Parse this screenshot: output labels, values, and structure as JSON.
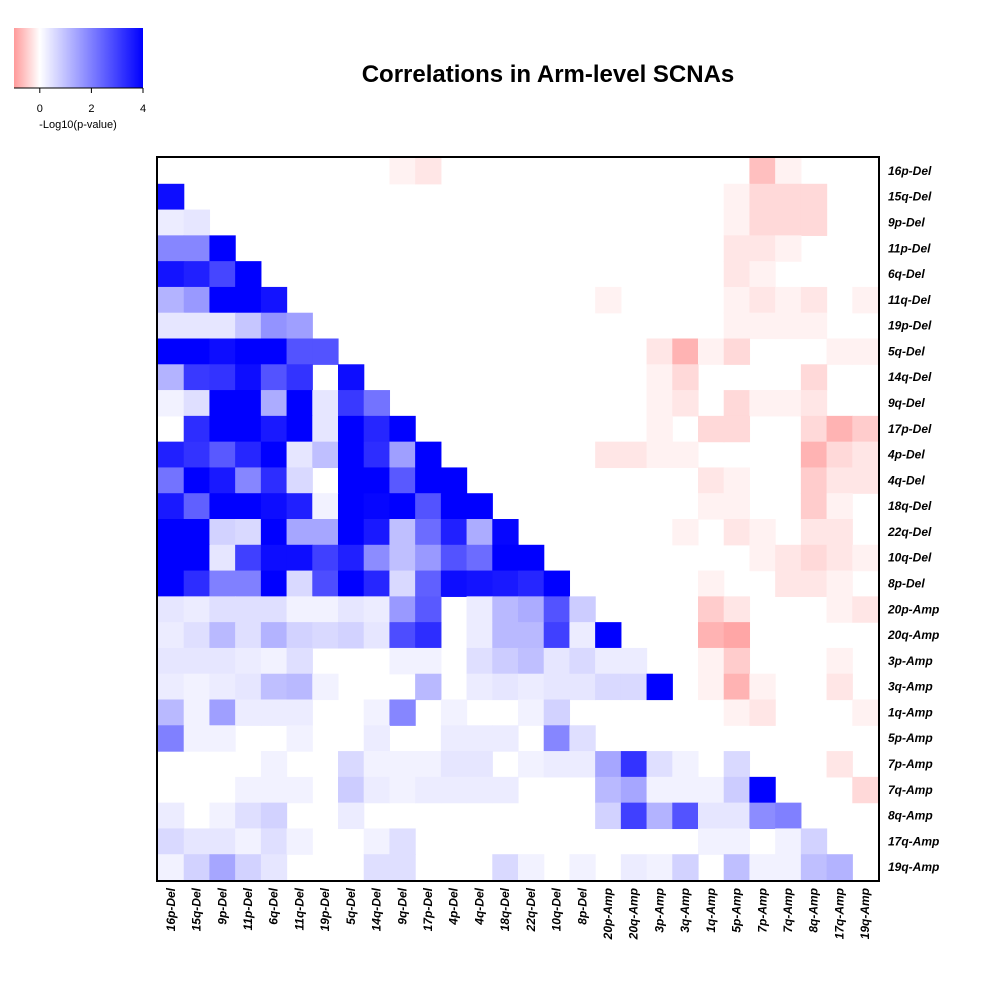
{
  "chart_data": {
    "type": "heatmap",
    "title": "Correlations in Arm-level SCNAs",
    "legend": {
      "label": "-Log10(p-value)",
      "ticks": [
        0,
        2,
        4
      ],
      "range": [
        -1,
        4
      ],
      "colors": {
        "negative": "#ff0000",
        "zero": "#ffffff",
        "positive": "#0000ff"
      }
    },
    "labels": [
      "16p-Del",
      "15q-Del",
      "9p-Del",
      "11p-Del",
      "6q-Del",
      "11q-Del",
      "19p-Del",
      "5q-Del",
      "14q-Del",
      "9q-Del",
      "17p-Del",
      "4p-Del",
      "4q-Del",
      "18q-Del",
      "22q-Del",
      "10q-Del",
      "8p-Del",
      "20p-Amp",
      "20q-Amp",
      "3p-Amp",
      "3q-Amp",
      "1q-Amp",
      "5p-Amp",
      "7p-Amp",
      "7q-Amp",
      "8q-Amp",
      "17q-Amp",
      "19q-Amp"
    ],
    "matrix": [
      [
        0,
        0,
        0,
        0,
        0,
        0,
        0,
        0,
        0,
        -0.05,
        -0.1,
        0,
        0,
        0,
        0,
        0,
        0,
        0,
        0,
        0,
        0,
        0,
        0,
        -0.25,
        -0.05,
        0,
        0,
        0
      ],
      [
        3.8,
        0,
        0,
        0,
        0,
        0,
        0,
        0,
        0,
        0,
        0,
        0,
        0,
        0,
        0,
        0,
        0,
        0,
        0,
        0,
        0,
        0,
        -0.05,
        -0.15,
        -0.15,
        -0.15,
        0,
        0
      ],
      [
        0.3,
        0.4,
        0,
        0,
        0,
        0,
        0,
        0,
        0,
        0,
        0,
        0,
        0,
        0,
        0,
        0,
        0,
        0,
        0,
        0,
        0,
        0,
        -0.05,
        -0.15,
        -0.15,
        -0.15,
        0,
        0
      ],
      [
        1.9,
        1.9,
        4,
        0,
        0,
        0,
        0,
        0,
        0,
        0,
        0,
        0,
        0,
        0,
        0,
        0,
        0,
        0,
        0,
        0,
        0,
        0,
        -0.1,
        -0.1,
        -0.05,
        0,
        0,
        0
      ],
      [
        3.7,
        3.5,
        2.9,
        4,
        0,
        0,
        0,
        0,
        0,
        0,
        0,
        0,
        0,
        0,
        0,
        0,
        0,
        0,
        0,
        0,
        0,
        0,
        -0.1,
        -0.05,
        0,
        0,
        0,
        0
      ],
      [
        1.2,
        1.6,
        4,
        4,
        3.7,
        0,
        0,
        0,
        0,
        0,
        0,
        0,
        0,
        0,
        0,
        0,
        0,
        -0.05,
        0,
        0,
        0,
        0,
        -0.05,
        -0.1,
        -0.05,
        -0.1,
        0,
        -0.05
      ],
      [
        0.4,
        0.4,
        0.4,
        0.9,
        1.7,
        1.5,
        0,
        0,
        0,
        0,
        0,
        0,
        0,
        0,
        0,
        0,
        0,
        0,
        0,
        0,
        0,
        0,
        -0.05,
        -0.05,
        -0.05,
        -0.05,
        0,
        0
      ],
      [
        4,
        4,
        3.8,
        4,
        4,
        2.7,
        2.7,
        0,
        0,
        0,
        0,
        0,
        0,
        0,
        0,
        0,
        0,
        0,
        0,
        -0.1,
        -0.3,
        -0.05,
        -0.15,
        0,
        0,
        0,
        -0.05,
        -0.05
      ],
      [
        1.2,
        3.1,
        3.2,
        3.8,
        2.7,
        3.2,
        0,
        3.8,
        0,
        0,
        0,
        0,
        0,
        0,
        0,
        0,
        0,
        0,
        0,
        -0.05,
        -0.15,
        0,
        0,
        0,
        0,
        -0.15,
        0,
        0
      ],
      [
        0.2,
        0.5,
        4,
        4,
        1.3,
        4,
        0.4,
        3.1,
        2.2,
        0,
        0,
        0,
        0,
        0,
        0,
        0,
        0,
        0,
        0,
        -0.05,
        -0.1,
        0,
        -0.15,
        -0.05,
        -0.05,
        -0.1,
        0,
        0
      ],
      [
        0,
        3.3,
        4,
        4,
        3.6,
        4,
        0.4,
        4,
        3.4,
        4,
        0,
        0,
        0,
        0,
        0,
        0,
        0,
        0,
        0,
        -0.05,
        0,
        -0.15,
        -0.15,
        0,
        0,
        -0.15,
        -0.3,
        -0.2
      ],
      [
        3.5,
        3.2,
        2.6,
        3.4,
        4,
        0.4,
        1,
        4,
        3.3,
        1.5,
        4,
        0,
        0,
        0,
        0,
        0,
        0,
        -0.1,
        -0.1,
        -0.05,
        -0.05,
        0,
        0,
        0,
        0,
        -0.3,
        -0.15,
        -0.1
      ],
      [
        2.2,
        4,
        3.6,
        1.9,
        3.3,
        0.6,
        0,
        4,
        4,
        2.6,
        4,
        4,
        0,
        0,
        0,
        0,
        0,
        0,
        0,
        0,
        0,
        -0.1,
        -0.05,
        0,
        0,
        -0.2,
        -0.1,
        -0.1
      ],
      [
        3.6,
        2.5,
        4,
        4,
        3.8,
        3.5,
        0.2,
        4,
        3.9,
        4,
        2.7,
        4,
        4,
        0,
        0,
        0,
        0,
        0,
        0,
        0,
        0,
        -0.05,
        -0.05,
        0,
        0,
        -0.2,
        -0.05,
        0
      ],
      [
        4,
        4,
        0.7,
        0.6,
        4,
        1.4,
        1.4,
        4,
        3.6,
        1,
        2.3,
        3.5,
        1.3,
        3.9,
        0,
        0,
        0,
        0,
        0,
        0,
        -0.05,
        0,
        -0.1,
        -0.05,
        0,
        -0.1,
        -0.1,
        0
      ],
      [
        4,
        4,
        0.4,
        3,
        3.8,
        3.8,
        3,
        3.5,
        1.8,
        1,
        1.6,
        2.7,
        2.3,
        4,
        4,
        0,
        0,
        0,
        0,
        0,
        0,
        0,
        0,
        -0.05,
        -0.1,
        -0.15,
        -0.1,
        -0.05
      ],
      [
        4,
        3.3,
        2,
        2,
        4,
        0.6,
        2.8,
        4,
        3.4,
        0.6,
        2.5,
        3.8,
        3.7,
        3.6,
        3.4,
        4,
        0,
        0,
        0,
        0,
        0,
        -0.05,
        0,
        0,
        -0.1,
        -0.1,
        -0.05,
        0
      ],
      [
        0.4,
        0.3,
        0.5,
        0.5,
        0.5,
        0.2,
        0.2,
        0.4,
        0.3,
        1.6,
        2.6,
        0,
        0.3,
        1.1,
        1.3,
        2.7,
        0.8,
        0,
        0,
        0,
        0,
        -0.2,
        -0.1,
        0,
        0,
        0,
        -0.05,
        -0.1
      ],
      [
        0.3,
        0.5,
        1.1,
        0.5,
        1.2,
        0.7,
        0.6,
        0.7,
        0.4,
        2.8,
        3.3,
        0,
        0.3,
        1.1,
        1.1,
        3,
        0.3,
        4,
        0,
        0,
        0,
        -0.3,
        -0.35,
        0,
        0,
        0,
        0,
        0
      ],
      [
        0.4,
        0.4,
        0.4,
        0.3,
        0.2,
        0.5,
        0,
        0,
        0,
        0.2,
        0.2,
        0,
        0.5,
        0.8,
        1,
        0.4,
        0.6,
        0.3,
        0.3,
        0,
        0,
        -0.05,
        -0.2,
        0,
        0,
        0,
        -0.05,
        0
      ],
      [
        0.3,
        0.2,
        0.3,
        0.4,
        1,
        1.1,
        0.2,
        0,
        0,
        0,
        1.1,
        0,
        0.3,
        0.4,
        0.3,
        0.4,
        0.4,
        0.6,
        0.6,
        4,
        0,
        -0.05,
        -0.3,
        -0.05,
        0,
        0,
        -0.1,
        0
      ],
      [
        1.1,
        0.2,
        1.5,
        0.3,
        0.3,
        0.3,
        0,
        0,
        0.2,
        1.9,
        0,
        0.2,
        0,
        0,
        0.2,
        0.7,
        0,
        0,
        0,
        0,
        0,
        0,
        -0.05,
        -0.1,
        0,
        0,
        0,
        -0.05
      ],
      [
        2,
        0.2,
        0.2,
        0,
        0,
        0.2,
        0,
        0,
        0.3,
        0,
        0,
        0.3,
        0.3,
        0.3,
        0,
        1.9,
        0.5,
        0,
        0,
        0,
        0,
        0,
        0,
        0,
        0,
        0,
        0,
        0
      ],
      [
        0,
        0,
        0,
        0,
        0.2,
        0,
        0,
        0.6,
        0.2,
        0.2,
        0.2,
        0.4,
        0.4,
        0,
        0.2,
        0.3,
        0.3,
        1.4,
        3.2,
        0.5,
        0.2,
        0,
        0.6,
        0,
        0,
        0,
        -0.1,
        0
      ],
      [
        0,
        0,
        0,
        0.2,
        0.2,
        0.2,
        0,
        0.8,
        0.3,
        0.2,
        0.3,
        0.3,
        0.3,
        0.3,
        0,
        0,
        0,
        1.1,
        1.4,
        0.2,
        0.2,
        0.2,
        0.8,
        4,
        0,
        0,
        0,
        -0.15
      ],
      [
        0.3,
        0,
        0.2,
        0.5,
        0.7,
        0,
        0,
        0.3,
        0,
        0,
        0,
        0,
        0,
        0,
        0,
        0,
        0,
        0.7,
        3,
        1.2,
        2.7,
        0.4,
        0.4,
        1.8,
        2,
        0,
        0,
        0
      ],
      [
        0.6,
        0.4,
        0.4,
        0.2,
        0.5,
        0.2,
        0,
        0,
        0.2,
        0.5,
        0,
        0,
        0,
        0,
        0,
        0,
        0,
        0,
        0,
        0,
        0,
        0.2,
        0.2,
        0,
        0.2,
        0.7,
        0,
        0
      ],
      [
        0.2,
        0.7,
        1.4,
        0.7,
        0.4,
        0,
        0,
        0,
        0.5,
        0.5,
        0,
        0,
        0,
        0.6,
        0.2,
        0,
        0.2,
        0,
        0.3,
        0.2,
        0.7,
        0,
        1,
        0.2,
        0.2,
        1,
        1.2,
        0
      ]
    ]
  }
}
